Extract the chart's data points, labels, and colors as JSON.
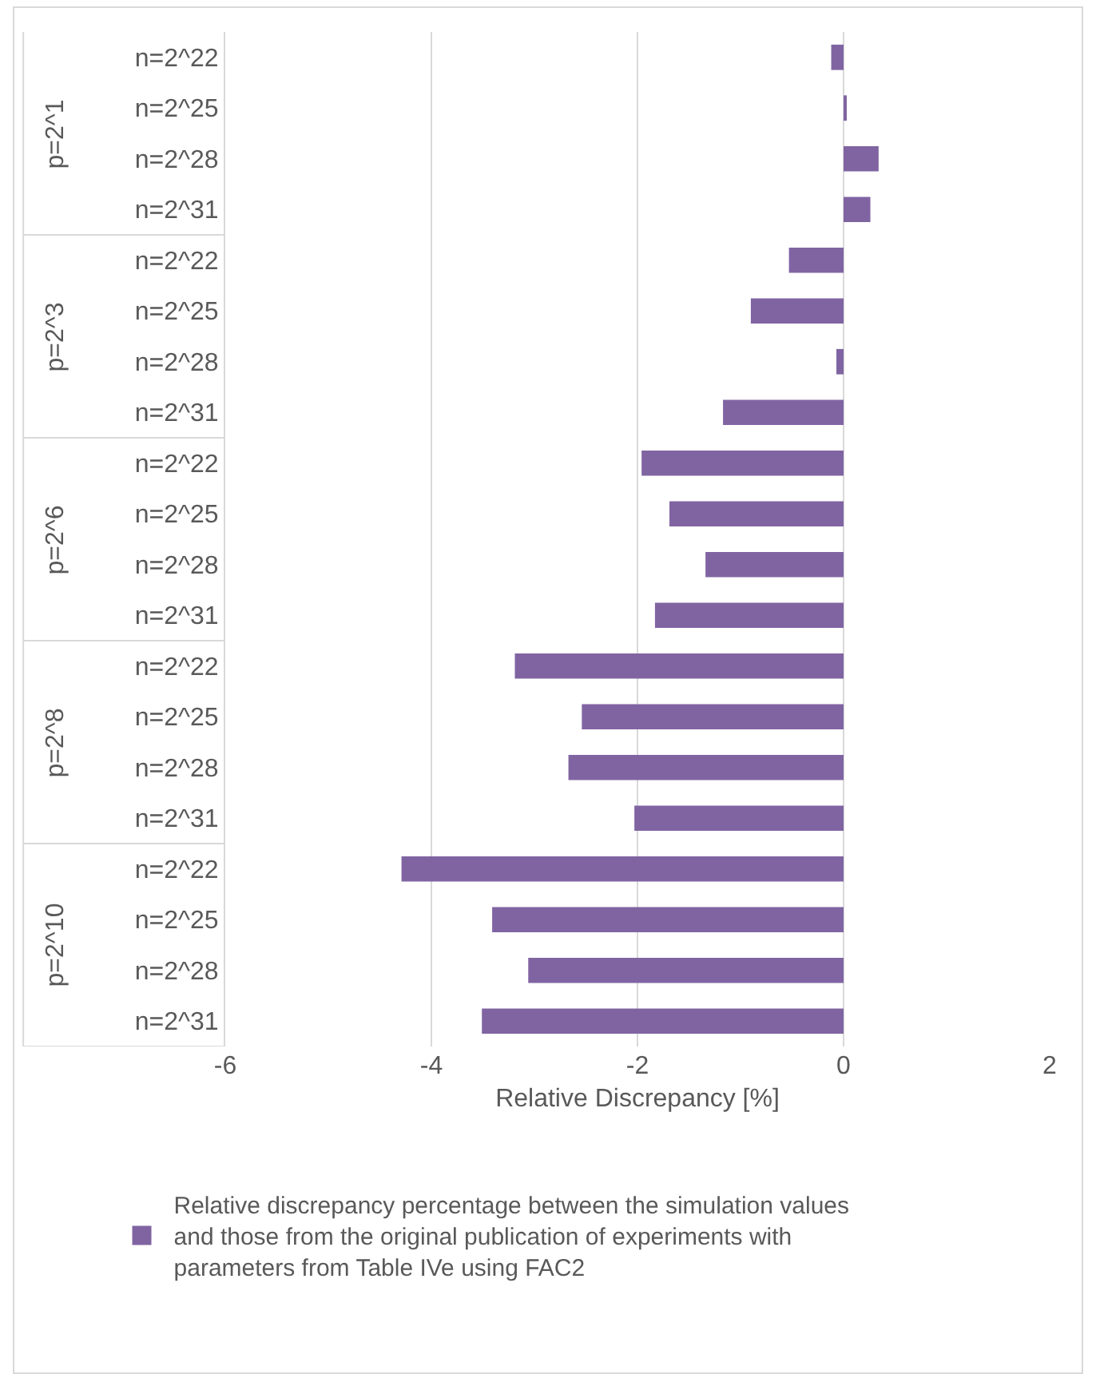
{
  "chart_data": {
    "type": "bar",
    "orientation": "horizontal",
    "xlabel": "Relative Discrepancy [%]",
    "categories": [
      "n=2^22",
      "n=2^25",
      "n=2^28",
      "n=2^31",
      "n=2^22",
      "n=2^25",
      "n=2^28",
      "n=2^31",
      "n=2^22",
      "n=2^25",
      "n=2^28",
      "n=2^31",
      "n=2^22",
      "n=2^25",
      "n=2^28",
      "n=2^31",
      "n=2^22",
      "n=2^25",
      "n=2^28",
      "n=2^31"
    ],
    "series": [
      {
        "name": "Relative discrepancy percentage between the simulation values and those from the original publication of experiments with parameters from Table IVe using FAC2",
        "color": "#8064a2",
        "values": [
          -0.12,
          0.03,
          0.34,
          0.26,
          -0.53,
          -0.9,
          -0.07,
          -1.17,
          -1.96,
          -1.69,
          -1.34,
          -1.83,
          -3.19,
          -2.54,
          -2.67,
          -2.03,
          -4.29,
          -3.41,
          -3.06,
          -3.51
        ]
      }
    ],
    "annotations": [
      "p=2^1",
      "p=2^3",
      "p=2^6",
      "p=2^8",
      "p=2^10"
    ],
    "xlim": [
      -6,
      2
    ],
    "xticks": [
      -6,
      -4,
      -2,
      0,
      2
    ],
    "grid": "x",
    "legend": "bottom"
  }
}
